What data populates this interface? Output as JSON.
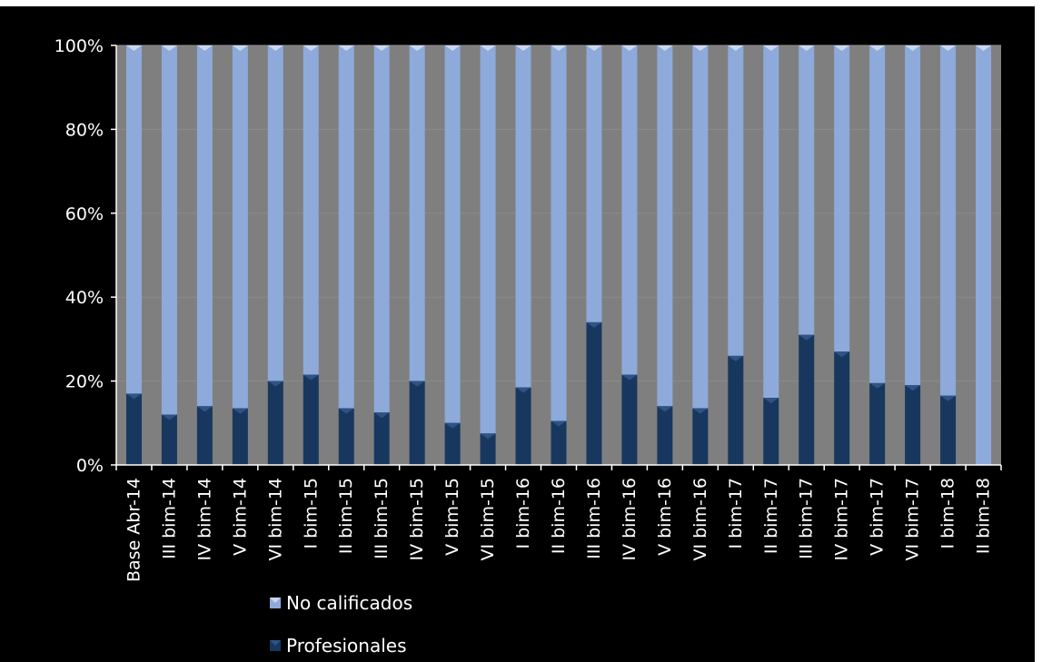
{
  "chart_data": {
    "type": "bar",
    "stacked": true,
    "stacked_percent": true,
    "categories": [
      "Base Abr-14",
      "III bim-14",
      "IV bim-14",
      "V bim-14",
      "VI bim-14",
      "I bim-15",
      "II bim-15",
      "III bim-15",
      "IV bim-15",
      "V bim-15",
      "VI bim-15",
      "I bim-16",
      "II bim-16",
      "III bim-16",
      "IV bim-16",
      "V bim-16",
      "VI bim-16",
      "I bim-17",
      "II bim-17",
      "III bim-17",
      "IV bim-17",
      "V bim-17",
      "VI bim-17",
      "I bim-18",
      "II bim-18"
    ],
    "series": [
      {
        "name": "Profesionales",
        "values": [
          17,
          12,
          14,
          13.5,
          20,
          21.5,
          13.5,
          12.5,
          20,
          10,
          7.5,
          18.5,
          10.5,
          34,
          21.5,
          14,
          13.5,
          26,
          16,
          31,
          27,
          19.5,
          19,
          16.5,
          0
        ]
      },
      {
        "name": "No calificados",
        "values": [
          83,
          88,
          86,
          86.5,
          80,
          78.5,
          86.5,
          87.5,
          80,
          90,
          92.5,
          81.5,
          89.5,
          66,
          78.5,
          86,
          86.5,
          74,
          84,
          69,
          73,
          80.5,
          81,
          83.5,
          100
        ]
      }
    ],
    "ylim": [
      0,
      100
    ],
    "yticks": [
      "0%",
      "20%",
      "40%",
      "60%",
      "80%",
      "100%"
    ],
    "grid": true,
    "legend_placement": "bottom-center",
    "colors": {
      "background": "#000000",
      "plot_area": "#7f7f7f",
      "profesionales": "#17375e",
      "no_calificados": "#8eaadb",
      "text": "#ffffff"
    }
  }
}
